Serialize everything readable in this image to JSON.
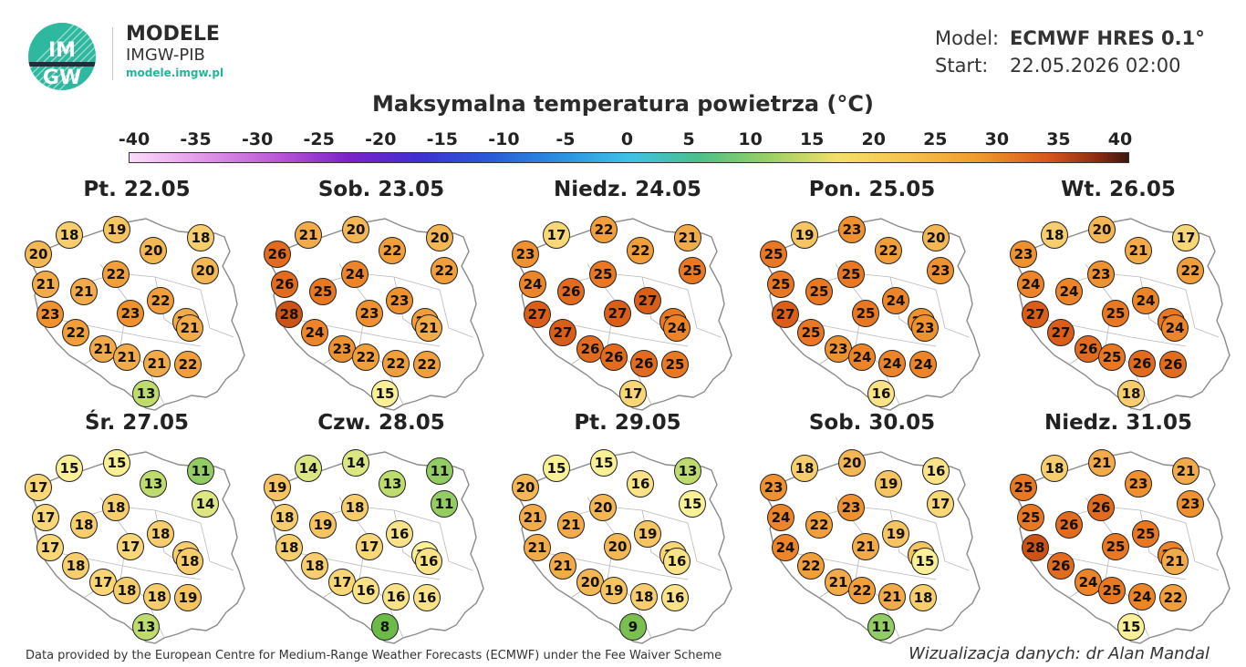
{
  "brand": {
    "title": "MODELE",
    "subtitle": "IMGW-PIB",
    "url": "modele.imgw.pl",
    "logo_text_top": "IM",
    "logo_text_bottom": "GW"
  },
  "meta": {
    "model_label": "Model:",
    "model_value": "ECMWF HRES 0.1°",
    "start_label": "Start:",
    "start_value": "22.05.2026 02:00"
  },
  "title": "Maksymalna temperatura powietrza (°C)",
  "scale": {
    "ticks": [
      "-40",
      "-35",
      "-30",
      "-25",
      "-20",
      "-15",
      "-10",
      "-5",
      "0",
      "5",
      "10",
      "15",
      "20",
      "25",
      "30",
      "35",
      "40"
    ]
  },
  "days": [
    {
      "label": "Pt. 22.05",
      "values": [
        18,
        19,
        20,
        20,
        18,
        22,
        20,
        21,
        21,
        22,
        23,
        23,
        21,
        21,
        22,
        21,
        21,
        21,
        22,
        13
      ]
    },
    {
      "label": "Sob. 23.05",
      "values": [
        21,
        20,
        26,
        22,
        20,
        24,
        22,
        26,
        25,
        23,
        28,
        23,
        22,
        21,
        24,
        23,
        22,
        22,
        22,
        15
      ]
    },
    {
      "label": "Niedz. 24.05",
      "values": [
        17,
        22,
        23,
        22,
        21,
        25,
        25,
        24,
        26,
        27,
        27,
        27,
        25,
        24,
        27,
        26,
        26,
        26,
        25,
        17
      ]
    },
    {
      "label": "Pon. 25.05",
      "values": [
        19,
        23,
        25,
        22,
        20,
        25,
        23,
        25,
        25,
        24,
        27,
        25,
        23,
        23,
        25,
        23,
        24,
        24,
        24,
        16
      ]
    },
    {
      "label": "Wt. 26.05",
      "values": [
        18,
        20,
        23,
        21,
        17,
        23,
        22,
        24,
        24,
        24,
        27,
        25,
        25,
        24,
        27,
        26,
        25,
        26,
        26,
        18
      ]
    },
    {
      "label": "Śr. 27.05",
      "values": [
        15,
        15,
        17,
        13,
        11,
        18,
        14,
        17,
        18,
        18,
        17,
        17,
        18,
        18,
        18,
        17,
        18,
        18,
        19,
        13
      ]
    },
    {
      "label": "Czw. 28.05",
      "values": [
        14,
        14,
        19,
        13,
        11,
        18,
        11,
        18,
        19,
        16,
        18,
        17,
        15,
        16,
        18,
        17,
        16,
        16,
        16,
        8
      ]
    },
    {
      "label": "Pt. 29.05",
      "values": [
        15,
        15,
        20,
        16,
        13,
        20,
        15,
        21,
        21,
        19,
        21,
        20,
        17,
        16,
        21,
        20,
        19,
        18,
        16,
        9
      ]
    },
    {
      "label": "Sob. 30.05",
      "values": [
        18,
        20,
        23,
        19,
        16,
        23,
        17,
        24,
        22,
        19,
        24,
        21,
        19,
        15,
        22,
        21,
        22,
        21,
        18,
        11
      ]
    },
    {
      "label": "Niedz. 31.05",
      "values": [
        18,
        21,
        25,
        23,
        21,
        26,
        23,
        25,
        26,
        25,
        28,
        25,
        24,
        21,
        26,
        24,
        25,
        24,
        22,
        15
      ]
    }
  ],
  "footer": "Data provided by the European Centre for Medium-Range Weather Forecasts (ECMWF) under the Fee Waiver Scheme",
  "credit": "Wizualizacja danych: dr Alan Mandal"
}
